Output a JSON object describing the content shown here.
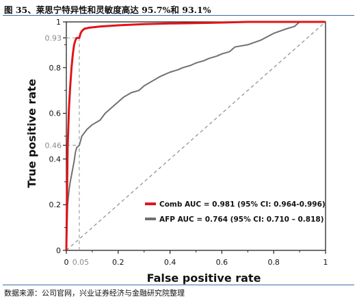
{
  "title": "图 35、莱思宁特异性和灵敏度高达 95.7%和 93.1%",
  "source": "数据来源：公司官网，兴业证券经济与金融研究院整理",
  "chart_data": {
    "type": "line",
    "xlabel": "False positive rate",
    "ylabel": "True positive rate",
    "xlim": [
      0,
      1
    ],
    "ylim": [
      0,
      1
    ],
    "x_ticks": [
      {
        "value": 0,
        "label": "0"
      },
      {
        "value": 0.2,
        "label": "0.2"
      },
      {
        "value": 0.4,
        "label": "0.4"
      },
      {
        "value": 0.6,
        "label": "0.6"
      },
      {
        "value": 0.8,
        "label": "0.8"
      },
      {
        "value": 1,
        "label": "1"
      }
    ],
    "y_ticks": [
      {
        "value": 0,
        "label": "0"
      },
      {
        "value": 0.2,
        "label": "0.2"
      },
      {
        "value": 0.4,
        "label": "0.4"
      },
      {
        "value": 0.6,
        "label": "0.6"
      },
      {
        "value": 0.8,
        "label": "0.8"
      },
      {
        "value": 1,
        "label": "1"
      }
    ],
    "annotations": {
      "x_marker": {
        "value": 0.05,
        "label": "0.05"
      },
      "y_markers": [
        {
          "value": 0.93,
          "label": "0.93"
        },
        {
          "value": 0.46,
          "label": "0.46"
        }
      ]
    },
    "diagonal_color": "#8c8c8c",
    "series": [
      {
        "name": "Comb AUC = 0.981 (95% CI: 0.964-0.996)",
        "color": "#e0141a",
        "x": [
          0,
          0.005,
          0.01,
          0.015,
          0.02,
          0.025,
          0.03,
          0.035,
          0.04,
          0.05,
          0.055,
          0.06,
          0.07,
          0.09,
          0.13,
          0.2,
          0.3,
          0.4,
          0.5,
          0.6,
          0.7,
          0.8,
          0.9,
          1
        ],
        "y": [
          0,
          0.45,
          0.62,
          0.72,
          0.8,
          0.86,
          0.9,
          0.92,
          0.93,
          0.93,
          0.95,
          0.96,
          0.97,
          0.975,
          0.98,
          0.985,
          0.99,
          0.993,
          0.995,
          0.997,
          1,
          1,
          1,
          1
        ]
      },
      {
        "name": "AFP AUC = 0.764 (95% CI: 0.710 – 0.818)",
        "color": "#707070",
        "x": [
          0,
          0.005,
          0.01,
          0.015,
          0.02,
          0.025,
          0.03,
          0.035,
          0.04,
          0.05,
          0.06,
          0.08,
          0.1,
          0.13,
          0.15,
          0.18,
          0.2,
          0.22,
          0.25,
          0.28,
          0.3,
          0.33,
          0.36,
          0.38,
          0.4,
          0.43,
          0.45,
          0.48,
          0.5,
          0.53,
          0.55,
          0.58,
          0.6,
          0.63,
          0.65,
          0.7,
          0.75,
          0.8,
          0.85,
          0.88,
          0.9,
          1
        ],
        "y": [
          0,
          0.2,
          0.26,
          0.3,
          0.33,
          0.36,
          0.39,
          0.43,
          0.45,
          0.46,
          0.5,
          0.53,
          0.55,
          0.57,
          0.6,
          0.63,
          0.65,
          0.67,
          0.69,
          0.7,
          0.72,
          0.74,
          0.76,
          0.77,
          0.78,
          0.79,
          0.8,
          0.81,
          0.82,
          0.83,
          0.84,
          0.85,
          0.86,
          0.87,
          0.89,
          0.9,
          0.92,
          0.95,
          0.97,
          0.98,
          1,
          1
        ]
      }
    ]
  }
}
